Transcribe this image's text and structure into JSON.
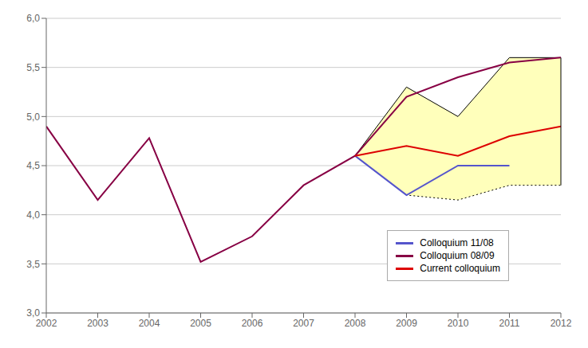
{
  "chart_data": {
    "type": "line",
    "x": [
      2002,
      2003,
      2004,
      2005,
      2006,
      2007,
      2008,
      2009,
      2010,
      2011,
      2012
    ],
    "series": [
      {
        "type": "band",
        "color": "#ffffbb",
        "lower": [
          null,
          null,
          null,
          null,
          null,
          null,
          4.6,
          4.2,
          4.15,
          4.3,
          4.3
        ],
        "upper": [
          null,
          null,
          null,
          null,
          null,
          null,
          4.6,
          5.3,
          5.0,
          5.6,
          5.6
        ]
      },
      {
        "type": "line",
        "color": "#000000",
        "line_style": "solid",
        "values": [
          null,
          null,
          null,
          null,
          null,
          null,
          4.6,
          5.3,
          5.0,
          5.6,
          5.6
        ]
      },
      {
        "type": "line",
        "color": "#000000",
        "line_style": "dotted",
        "values": [
          null,
          null,
          null,
          null,
          null,
          null,
          4.6,
          4.2,
          4.15,
          4.3,
          4.3
        ]
      },
      {
        "type": "line",
        "color": "#6666bb",
        "line_style": "solid",
        "values": [
          4.9,
          4.15,
          4.78,
          3.52,
          3.78,
          4.3,
          4.6,
          null,
          null,
          null,
          null
        ]
      },
      {
        "type": "line",
        "name": "Colloquium 11/08",
        "color": "#5555cc",
        "line_style": "solid",
        "values": [
          null,
          null,
          null,
          null,
          null,
          null,
          4.6,
          4.2,
          4.5,
          4.5,
          null
        ]
      },
      {
        "type": "line",
        "name": "Colloquium 08/09",
        "color": "#880044",
        "line_style": "solid",
        "values": [
          4.9,
          4.15,
          4.78,
          3.52,
          3.78,
          4.3,
          4.6,
          5.2,
          5.4,
          5.55,
          5.6
        ]
      },
      {
        "type": "line",
        "name": "Current colloquium",
        "color": "#dd0000",
        "line_style": "solid",
        "values": [
          null,
          null,
          null,
          null,
          null,
          null,
          4.6,
          4.7,
          4.6,
          4.8,
          4.9
        ]
      }
    ],
    "xlim": [
      2002,
      2012
    ],
    "xticks": [
      2002,
      2003,
      2004,
      2005,
      2006,
      2007,
      2008,
      2009,
      2010,
      2011,
      2012
    ],
    "ylim": [
      3.0,
      6.0
    ],
    "yticks": [
      {
        "value": 3.0,
        "label": "3,0"
      },
      {
        "value": 3.5,
        "label": "3,5"
      },
      {
        "value": 4.0,
        "label": "4,0"
      },
      {
        "value": 4.5,
        "label": "4,5"
      },
      {
        "value": 5.0,
        "label": "5,0"
      },
      {
        "value": 5.5,
        "label": "5,5"
      },
      {
        "value": 6.0,
        "label": "6,0"
      }
    ],
    "grid": "y",
    "legend": "lower right"
  }
}
